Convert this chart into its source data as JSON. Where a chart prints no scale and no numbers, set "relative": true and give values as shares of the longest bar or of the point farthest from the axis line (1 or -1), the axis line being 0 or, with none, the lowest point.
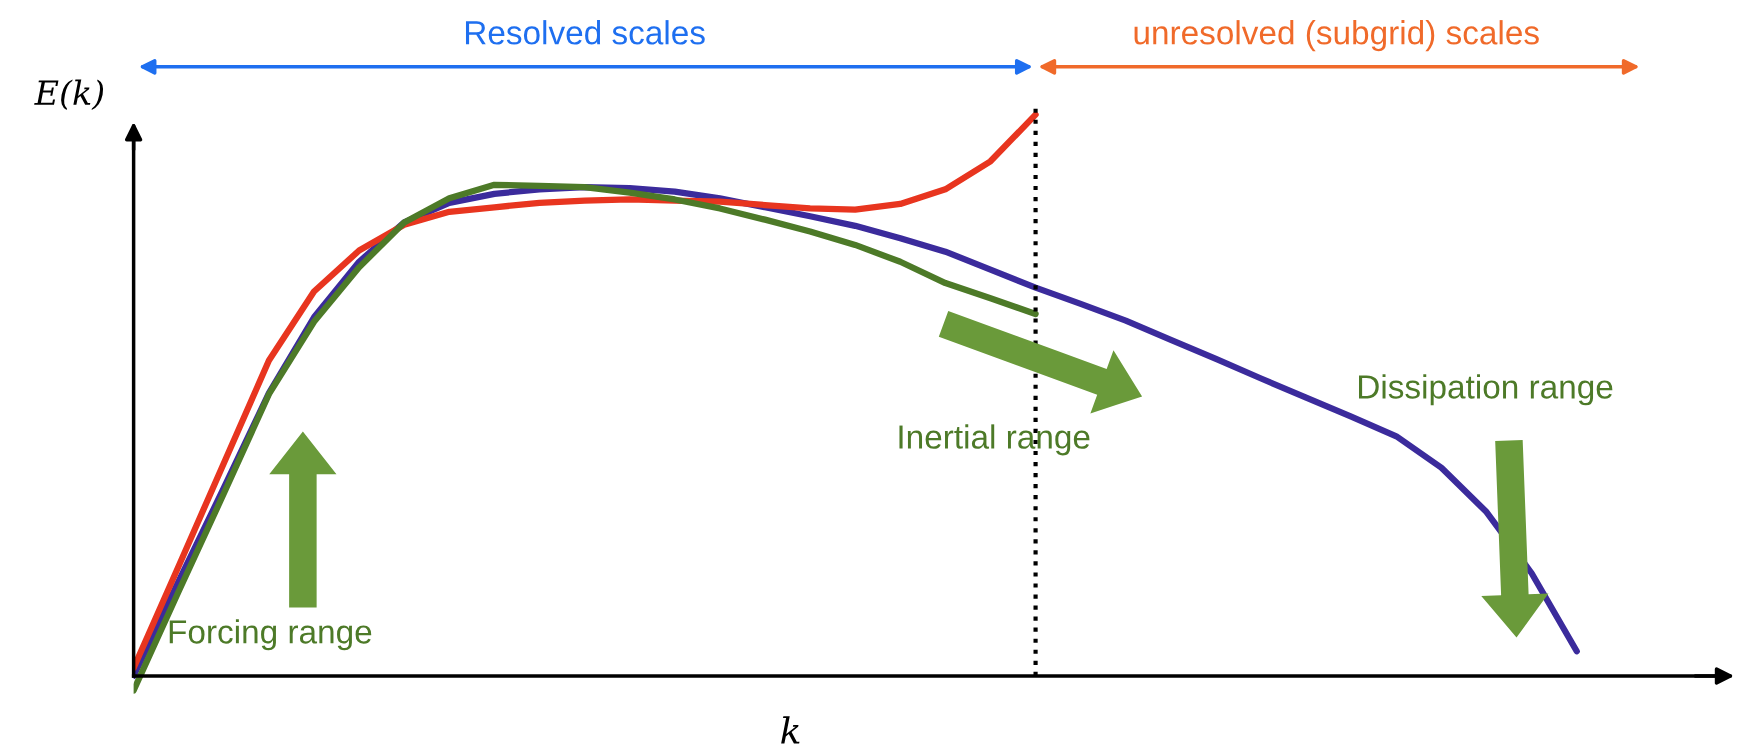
{
  "chart_data": {
    "type": "line",
    "relative": true,
    "xlabel": "k",
    "ylabel": "E(k)",
    "categories": [
      null,
      null,
      null,
      null,
      null,
      null,
      null,
      null,
      null,
      null,
      null,
      null,
      null,
      null,
      null,
      null,
      null,
      null,
      null,
      null,
      null,
      null,
      null,
      null,
      null,
      null,
      null,
      null,
      null,
      null,
      null,
      null,
      null
    ],
    "series": [
      {
        "color": "#3b2b9c",
        "values": [
          0,
          0.169,
          0.335,
          0.504,
          0.639,
          0.738,
          0.808,
          0.843,
          0.859,
          0.867,
          0.871,
          0.869,
          0.863,
          0.851,
          0.835,
          0.819,
          0.802,
          0.78,
          0.756,
          0.724,
          0.692,
          0.663,
          0.633,
          0.599,
          0.565,
          0.53,
          0.496,
          0.462,
          0.427,
          0.371,
          0.292,
          0.183,
          0.044
        ]
      },
      {
        "color": "#e8351f",
        "values": [
          0.014,
          0.196,
          0.379,
          0.562,
          0.685,
          0.758,
          0.804,
          0.827,
          0.835,
          0.843,
          0.847,
          0.849,
          0.847,
          0.845,
          0.839,
          0.833,
          0.831,
          0.841,
          0.867,
          0.917,
          1,
          null,
          null,
          null,
          null,
          null,
          null,
          null,
          null,
          null,
          null,
          null,
          null
        ]
      },
      {
        "color": "#4d7a28",
        "values": [
          -0.026,
          0.151,
          0.325,
          0.502,
          0.631,
          0.728,
          0.808,
          0.851,
          0.875,
          0.873,
          0.871,
          0.861,
          0.849,
          0.833,
          0.813,
          0.792,
          0.768,
          0.738,
          0.7,
          0.673,
          0.645,
          null,
          null,
          null,
          null,
          null,
          null,
          null,
          null,
          null,
          null,
          null,
          null
        ]
      }
    ],
    "annotations": [
      "Resolved scales",
      "unresolved (subgrid) scales",
      "Forcing range",
      "Inertial range",
      "Dissipation range"
    ],
    "grid": false,
    "marker": "none",
    "line_style": "solid"
  }
}
